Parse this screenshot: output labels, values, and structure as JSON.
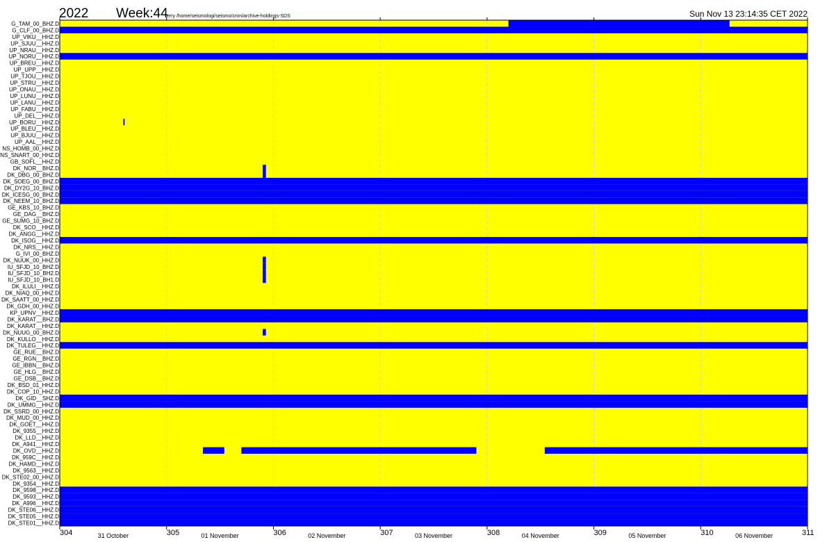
{
  "header": {
    "year": "2022",
    "week": "Week:44",
    "path": "terry /home/seismologi/seismo/cron/archive-holdings-SDS",
    "timestamp": "Sun Nov 13 23:14:35 CET 2022"
  },
  "chart_data": {
    "type": "timeline",
    "title": "",
    "x_unit": "day of year",
    "xlim": [
      304,
      311
    ],
    "x_ticks": [
      "304",
      "305",
      "306",
      "307",
      "308",
      "309",
      "310",
      "311"
    ],
    "date_labels": [
      "31 October",
      "01 November",
      "02 November",
      "03 November",
      "04 November",
      "05 November",
      "06 November"
    ],
    "grid": true,
    "colors": {
      "available": "#ffff00",
      "missing": "#0000ff"
    },
    "stations": [
      "G_TAM_00_BHZ.D",
      "G_CLF_00_BHZ.D",
      "UP_VIKU__HHZ.D",
      "UP_SJUU__HHZ.D",
      "UP_NRAU__HHZ.D",
      "UP_NORU__HHZ.D",
      "UP_BREU__HHZ.D",
      "UP_UPP__HHZ.D",
      "UP_TJOU__HHZ.D",
      "UP_STRU__HHZ.D",
      "UP_ONAU__HHZ.D",
      "UP_LUNU__HHZ.D",
      "UP_LANU__HHZ.D",
      "UP_FABU__HHZ.D",
      "UP_DEL__HHZ.D",
      "UP_BORU__HHZ.D",
      "UP_BLEU__HHZ.D",
      "UP_BJUU__HHZ.D",
      "UP_AAL__HHZ.D",
      "NS_HOMB_00_HHZ.D",
      "NS_SNART_00_HHZ.D",
      "GB_SOFL__HHZ.D",
      "DK_NOR__BHZ.D",
      "DK_DBG_00_BHZ.D",
      "DK_SOEG_00_BHZ.D",
      "DK_DY2G_10_BHZ.D",
      "DK_ICESG_00_BHZ.D",
      "DK_NEEM_10_BHZ.D",
      "GE_KBS_10_BHZ.D",
      "GE_DAG__BHZ.D",
      "GE_SUMG_10_BHZ.D",
      "DK_SCO__HHZ.D",
      "DK_ANGG__HHZ.D",
      "DK_ISOG__HHZ.D",
      "DK_NRS__HHZ.D",
      "G_IVI_00_BHZ.D",
      "DK_NUUK_00_HHZ.D",
      "IU_SFJD_10_BHZ.D",
      "IU_SFJD_10_BH2.D",
      "IU_SFJD_10_BH1.D",
      "DK_ILULI__HHZ.D",
      "DK_NIAQ_00_HHZ.D",
      "DK_SAATT_00_HHZ.D",
      "DK_GDH_00_HHZ.D",
      "KP_UPNV__HHZ.D",
      "DK_KARAT__BHZ.D",
      "DK_KARAT__HHZ.D",
      "DK_NUUG_00_BHZ.D",
      "DK_KULLO__HHZ.D",
      "DK_TULEG__HHZ.D",
      "GE_RUE__BHZ.D",
      "GE_RGN__BHZ.D",
      "GE_IBBN__BHZ.D",
      "GE_HLG__BHZ.D",
      "GE_DSB__BHZ.D",
      "DK_BSD_01_HHZ.D",
      "DK_COP_10_HHZ.D",
      "DK_GID__SHZ.D",
      "DK_UMMG__HHZ.D",
      "DK_SSRD_00_HHZ.D",
      "DK_MUD_00_HHZ.D",
      "DK_GOET__HHZ.D",
      "DK_9355__HHZ.D",
      "DK_LLD__HHZ.D",
      "DK_A941__HHZ.D",
      "DK_OVD__HHZ.D",
      "DK_959C__HHZ.D",
      "DK_HAMD__HHZ.D",
      "DK_9563__HHZ.D",
      "DK_STE02_00_HHZ.D",
      "DK_9354__HHZ.D",
      "DK_9598__HHZ.D",
      "DK_9593__HHZ.D",
      "DK_A996__HHZ.D",
      "DK_STE06__HHZ.D",
      "DK_STE05__HHZ.D",
      "DK_STE01__HHZ.D"
    ],
    "gaps": [
      {
        "station": "G_TAM_00_BHZ.D",
        "start": 308.2,
        "end": 310.27
      },
      {
        "station": "G_CLF_00_BHZ.D",
        "start": 304,
        "end": 311
      },
      {
        "station": "UP_NORU__HHZ.D",
        "start": 304,
        "end": 311
      },
      {
        "station": "UP_BORU__HHZ.D",
        "start": 304.595,
        "end": 304.607
      },
      {
        "station": "DK_NOR__BHZ.D",
        "start": 305.9,
        "end": 305.93
      },
      {
        "station": "DK_DBG_00_BHZ.D",
        "start": 305.9,
        "end": 305.93
      },
      {
        "station": "DK_SOEG_00_BHZ.D",
        "start": 304,
        "end": 311
      },
      {
        "station": "DK_DY2G_10_BHZ.D",
        "start": 304,
        "end": 311
      },
      {
        "station": "DK_ICESG_00_BHZ.D",
        "start": 304,
        "end": 311
      },
      {
        "station": "DK_NEEM_10_BHZ.D",
        "start": 304,
        "end": 311
      },
      {
        "station": "DK_ISOG__HHZ.D",
        "start": 304,
        "end": 311
      },
      {
        "station": "DK_NUUK_00_HHZ.D",
        "start": 305.9,
        "end": 305.93
      },
      {
        "station": "IU_SFJD_10_BHZ.D",
        "start": 305.9,
        "end": 305.93
      },
      {
        "station": "IU_SFJD_10_BH2.D",
        "start": 305.9,
        "end": 305.93
      },
      {
        "station": "IU_SFJD_10_BH1.D",
        "start": 305.9,
        "end": 305.93
      },
      {
        "station": "KP_UPNV__HHZ.D",
        "start": 304,
        "end": 311
      },
      {
        "station": "DK_KARAT__BHZ.D",
        "start": 304,
        "end": 311
      },
      {
        "station": "DK_NUUG_00_BHZ.D",
        "start": 305.9,
        "end": 305.93
      },
      {
        "station": "DK_TULEG__HHZ.D",
        "start": 304,
        "end": 311
      },
      {
        "station": "DK_GID__SHZ.D",
        "start": 304,
        "end": 311
      },
      {
        "station": "DK_UMMG__HHZ.D",
        "start": 304,
        "end": 311
      },
      {
        "station": "DK_OVD__HHZ.D",
        "start": 305.34,
        "end": 305.54
      },
      {
        "station": "DK_OVD__HHZ.D",
        "start": 305.7,
        "end": 307.9
      },
      {
        "station": "DK_OVD__HHZ.D",
        "start": 308.54,
        "end": 311
      },
      {
        "station": "DK_9598__HHZ.D",
        "start": 304,
        "end": 311
      },
      {
        "station": "DK_9593__HHZ.D",
        "start": 304,
        "end": 311
      },
      {
        "station": "DK_A996__HHZ.D",
        "start": 304,
        "end": 311
      },
      {
        "station": "DK_STE06__HHZ.D",
        "start": 304,
        "end": 311
      },
      {
        "station": "DK_STE05__HHZ.D",
        "start": 304,
        "end": 311
      },
      {
        "station": "DK_STE01__HHZ.D",
        "start": 304,
        "end": 311
      }
    ]
  }
}
